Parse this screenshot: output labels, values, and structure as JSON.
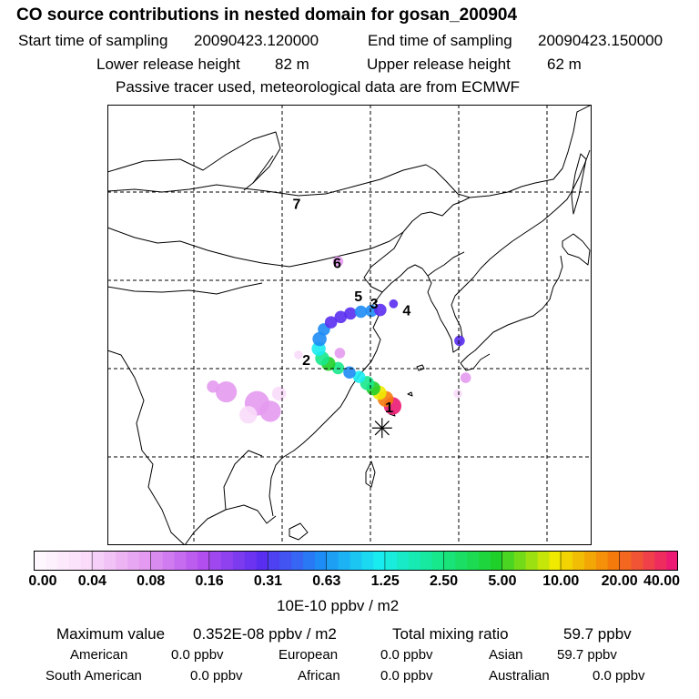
{
  "header": {
    "title": "CO  source contributions in nested domain for gosan_200904",
    "start_label": "Start time of sampling",
    "start_value": "20090423.120000",
    "end_label": "End time of sampling",
    "end_value": "20090423.150000",
    "lower_label": "Lower release height",
    "lower_value": "82 m",
    "upper_label": "Upper release height",
    "upper_value": "62 m",
    "tracer_note": "Passive tracer used, meteorological data are from ECMWF"
  },
  "map": {
    "markers": [
      {
        "label": "1",
        "lon": 127.0,
        "lat": 35.5
      },
      {
        "label": "2",
        "lon": 117.6,
        "lat": 40.9
      },
      {
        "label": "3",
        "lon": 125.3,
        "lat": 47.3
      },
      {
        "label": "4",
        "lon": 129.0,
        "lat": 46.5
      },
      {
        "label": "5",
        "lon": 123.5,
        "lat": 48.1
      },
      {
        "label": "6",
        "lon": 121.1,
        "lat": 51.9
      },
      {
        "label": "7",
        "lon": 116.5,
        "lat": 58.6
      }
    ],
    "receptor": {
      "lon": 126.2,
      "lat": 33.3
    },
    "plume": [
      {
        "lon": 127.4,
        "lat": 35.8,
        "r": 1.0,
        "level": 10
      },
      {
        "lon": 126.6,
        "lat": 36.6,
        "r": 0.9,
        "level": 9
      },
      {
        "lon": 125.9,
        "lat": 37.3,
        "r": 0.8,
        "level": 8
      },
      {
        "lon": 125.2,
        "lat": 37.8,
        "r": 0.8,
        "level": 7
      },
      {
        "lon": 124.5,
        "lat": 38.4,
        "r": 0.8,
        "level": 6
      },
      {
        "lon": 123.6,
        "lat": 39.1,
        "r": 0.7,
        "level": 5
      },
      {
        "lon": 122.5,
        "lat": 39.6,
        "r": 0.7,
        "level": 4
      },
      {
        "lon": 121.2,
        "lat": 40.1,
        "r": 0.7,
        "level": 6
      },
      {
        "lon": 120.1,
        "lat": 40.6,
        "r": 0.8,
        "level": 7
      },
      {
        "lon": 119.4,
        "lat": 41.2,
        "r": 0.8,
        "level": 6
      },
      {
        "lon": 119.0,
        "lat": 42.3,
        "r": 0.8,
        "level": 5
      },
      {
        "lon": 119.1,
        "lat": 43.4,
        "r": 0.8,
        "level": 4
      },
      {
        "lon": 119.6,
        "lat": 44.5,
        "r": 0.7,
        "level": 4
      },
      {
        "lon": 120.4,
        "lat": 45.3,
        "r": 0.7,
        "level": 3
      },
      {
        "lon": 121.5,
        "lat": 45.9,
        "r": 0.7,
        "level": 3
      },
      {
        "lon": 122.6,
        "lat": 46.3,
        "r": 0.7,
        "level": 3
      },
      {
        "lon": 123.8,
        "lat": 46.5,
        "r": 0.7,
        "level": 4
      },
      {
        "lon": 125.0,
        "lat": 46.6,
        "r": 0.7,
        "level": 4
      },
      {
        "lon": 126.0,
        "lat": 46.7,
        "r": 0.7,
        "level": 3
      },
      {
        "lon": 127.5,
        "lat": 47.4,
        "r": 0.5,
        "level": 3
      },
      {
        "lon": 135.0,
        "lat": 43.2,
        "r": 0.6,
        "level": 3
      },
      {
        "lon": 121.2,
        "lat": 52.2,
        "r": 0.6,
        "level": 1
      },
      {
        "lon": 108.5,
        "lat": 37.4,
        "r": 1.2,
        "level": 1
      },
      {
        "lon": 107.0,
        "lat": 38.0,
        "r": 0.7,
        "level": 1
      },
      {
        "lon": 112.0,
        "lat": 36.1,
        "r": 1.4,
        "level": 1
      },
      {
        "lon": 113.5,
        "lat": 35.2,
        "r": 1.2,
        "level": 1
      },
      {
        "lon": 111.0,
        "lat": 34.8,
        "r": 1.0,
        "level": 0
      },
      {
        "lon": 114.5,
        "lat": 37.2,
        "r": 0.8,
        "level": 0
      },
      {
        "lon": 116.7,
        "lat": 41.6,
        "r": 0.5,
        "level": 0
      },
      {
        "lon": 121.4,
        "lat": 41.8,
        "r": 0.6,
        "level": 1
      },
      {
        "lon": 135.7,
        "lat": 39.0,
        "r": 0.6,
        "level": 1
      },
      {
        "lon": 134.8,
        "lat": 37.2,
        "r": 0.5,
        "level": 0
      }
    ]
  },
  "colorbar": {
    "labels": [
      "0.00",
      "0.04",
      "0.08",
      "0.16",
      "0.31",
      "0.63",
      "1.25",
      "2.50",
      "5.00",
      "10.00",
      "20.00",
      "40.00"
    ],
    "units": "10E-10 ppbv / m2",
    "palette": [
      "#fadcfa",
      "#e49af0",
      "#b24ef0",
      "#5a2ef0",
      "#1e8cf5",
      "#19ecf0",
      "#17e88c",
      "#20d02a",
      "#f0ea00",
      "#f57a0c",
      "#ec1a72",
      "#8c0a70"
    ]
  },
  "stats": {
    "max_label": "Maximum value",
    "max_value": "0.352E-08 ppbv / m2",
    "total_label": "Total mixing ratio",
    "total_value": "59.7 ppbv",
    "sources": {
      "american_label": "American",
      "american_value": "0.0 ppbv",
      "european_label": "European",
      "european_value": "0.0 ppbv",
      "asian_label": "Asian",
      "asian_value": "59.7 ppbv",
      "south_american_label": "South American",
      "south_american_value": "0.0 ppbv",
      "african_label": "African",
      "african_value": "0.0 ppbv",
      "australian_label": "Australian",
      "australian_value": "0.0 ppbv"
    }
  }
}
